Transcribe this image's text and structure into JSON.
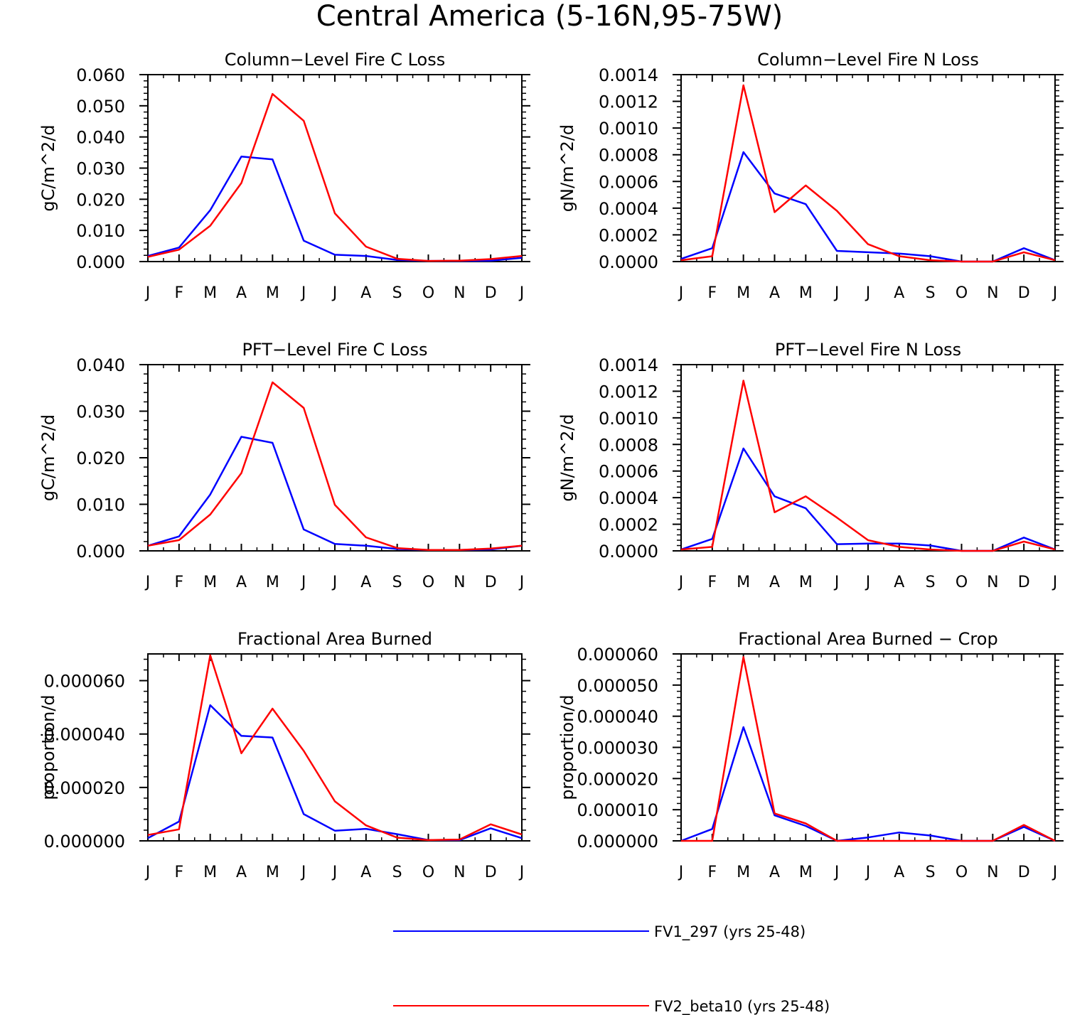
{
  "figure_title": "Central America (5-16N,95-75W)",
  "colors": {
    "series1": "#0000ff",
    "series2": "#ff0000",
    "axis": "#000000"
  },
  "legend": [
    {
      "label": "FV1_297 (yrs 25-48)",
      "color": "#0000ff"
    },
    {
      "label": "FV2_beta10 (yrs 25-48)",
      "color": "#ff0000"
    }
  ],
  "chart_data": [
    {
      "type": "line",
      "title": "Column-Level Fire C Loss",
      "ylabel": "gC/m^2/d",
      "categories": [
        "J",
        "F",
        "M",
        "A",
        "M",
        "J",
        "J",
        "A",
        "S",
        "O",
        "N",
        "D",
        "J"
      ],
      "ylim": [
        0,
        0.06
      ],
      "yticks": [
        0,
        0.01,
        0.02,
        0.03,
        0.04,
        0.05,
        0.06
      ],
      "yticklabels": [
        "0.000",
        "0.010",
        "0.020",
        "0.030",
        "0.040",
        "0.050",
        "0.060"
      ],
      "minor_per_major": 4,
      "series": [
        {
          "name": "FV1_297 (yrs 25-48)",
          "color": "#0000ff",
          "values": [
            0.0018,
            0.0045,
            0.0165,
            0.0337,
            0.0328,
            0.0067,
            0.0022,
            0.0018,
            0.0005,
            0.0002,
            0.0002,
            0.0003,
            0.0012
          ]
        },
        {
          "name": "FV2_beta10 (yrs 25-48)",
          "color": "#ff0000",
          "values": [
            0.0015,
            0.0038,
            0.0115,
            0.0252,
            0.0538,
            0.0452,
            0.0155,
            0.0048,
            0.0009,
            0.0002,
            0.0003,
            0.0008,
            0.0018
          ]
        }
      ]
    },
    {
      "type": "line",
      "title": "Column-Level Fire N Loss",
      "ylabel": "gN/m^2/d",
      "categories": [
        "J",
        "F",
        "M",
        "A",
        "M",
        "J",
        "J",
        "A",
        "S",
        "O",
        "N",
        "D",
        "J"
      ],
      "ylim": [
        0,
        0.0014
      ],
      "yticks": [
        0,
        0.0002,
        0.0004,
        0.0006,
        0.0008,
        0.001,
        0.0012,
        0.0014
      ],
      "yticklabels": [
        "0.0000",
        "0.0002",
        "0.0004",
        "0.0006",
        "0.0008",
        "0.0010",
        "0.0012",
        "0.0014"
      ],
      "minor_per_major": 4,
      "series": [
        {
          "name": "FV1_297 (yrs 25-48)",
          "color": "#0000ff",
          "values": [
            2e-05,
            0.0001,
            0.00082,
            0.00051,
            0.00043,
            8e-05,
            7e-05,
            6e-05,
            4e-05,
            0.0,
            0.0,
            0.0001,
            1e-05
          ]
        },
        {
          "name": "FV2_beta10 (yrs 25-48)",
          "color": "#ff0000",
          "values": [
            1e-05,
            4e-05,
            0.00132,
            0.00037,
            0.00057,
            0.00038,
            0.00013,
            4e-05,
            1e-05,
            0.0,
            0.0,
            7e-05,
            1e-05
          ]
        }
      ]
    },
    {
      "type": "line",
      "title": "PFT-Level Fire C Loss",
      "ylabel": "gC/m^2/d",
      "categories": [
        "J",
        "F",
        "M",
        "A",
        "M",
        "J",
        "J",
        "A",
        "S",
        "O",
        "N",
        "D",
        "J"
      ],
      "ylim": [
        0,
        0.04
      ],
      "yticks": [
        0,
        0.01,
        0.02,
        0.03,
        0.04
      ],
      "yticklabels": [
        "0.000",
        "0.010",
        "0.020",
        "0.030",
        "0.040"
      ],
      "minor_per_major": 4,
      "series": [
        {
          "name": "FV1_297 (yrs 25-48)",
          "color": "#0000ff",
          "values": [
            0.0011,
            0.0031,
            0.0121,
            0.0245,
            0.0232,
            0.0046,
            0.0015,
            0.0011,
            0.0004,
            0.0002,
            0.0002,
            0.0003,
            0.0011
          ]
        },
        {
          "name": "FV2_beta10 (yrs 25-48)",
          "color": "#ff0000",
          "values": [
            0.0011,
            0.0023,
            0.0078,
            0.0167,
            0.0362,
            0.0307,
            0.0099,
            0.0029,
            0.0006,
            0.0002,
            0.0002,
            0.0005,
            0.0011
          ]
        }
      ]
    },
    {
      "type": "line",
      "title": "PFT-Level Fire N Loss",
      "ylabel": "gN/m^2/d",
      "categories": [
        "J",
        "F",
        "M",
        "A",
        "M",
        "J",
        "J",
        "A",
        "S",
        "O",
        "N",
        "D",
        "J"
      ],
      "ylim": [
        0,
        0.0014
      ],
      "yticks": [
        0,
        0.0002,
        0.0004,
        0.0006,
        0.0008,
        0.001,
        0.0012,
        0.0014
      ],
      "yticklabels": [
        "0.0000",
        "0.0002",
        "0.0004",
        "0.0006",
        "0.0008",
        "0.0010",
        "0.0012",
        "0.0014"
      ],
      "minor_per_major": 4,
      "series": [
        {
          "name": "FV1_297 (yrs 25-48)",
          "color": "#0000ff",
          "values": [
            1e-05,
            9e-05,
            0.00077,
            0.00041,
            0.00032,
            5e-05,
            5.5e-05,
            5.5e-05,
            4e-05,
            0.0,
            0.0,
            0.0001,
            1e-05
          ]
        },
        {
          "name": "FV2_beta10 (yrs 25-48)",
          "color": "#ff0000",
          "values": [
            1e-05,
            3e-05,
            0.00128,
            0.00029,
            0.00041,
            0.00025,
            8e-05,
            3e-05,
            1e-05,
            0.0,
            0.0,
            7e-05,
            1e-05
          ]
        }
      ]
    },
    {
      "type": "line",
      "title": "Fractional Area Burned",
      "ylabel": "proportion/d",
      "categories": [
        "J",
        "F",
        "M",
        "A",
        "M",
        "J",
        "J",
        "A",
        "S",
        "O",
        "N",
        "D",
        "J"
      ],
      "ylim": [
        0,
        7e-05
      ],
      "yticks": [
        0,
        2e-05,
        4e-05,
        6e-05
      ],
      "yticklabels": [
        "0.000000",
        "0.000020",
        "0.000040",
        "0.000060"
      ],
      "minor_per_major": 4,
      "series": [
        {
          "name": "FV1_297 (yrs 25-48)",
          "color": "#0000ff",
          "values": [
            1e-06,
            7.2e-06,
            5.08e-05,
            3.93e-05,
            3.87e-05,
            1e-05,
            3.8e-06,
            4.5e-06,
            2.5e-06,
            3e-07,
            3e-07,
            4.7e-06,
            1e-06
          ]
        },
        {
          "name": "FV2_beta10 (yrs 25-48)",
          "color": "#ff0000",
          "values": [
            2.2e-06,
            4.3e-06,
            6.95e-05,
            3.28e-05,
            4.95e-05,
            3.37e-05,
            1.48e-05,
            5.8e-06,
            1.2e-06,
            3e-07,
            5e-07,
            6.2e-06,
            2.4e-06
          ]
        }
      ]
    },
    {
      "type": "line",
      "title": "Fractional Area Burned - Crop",
      "ylabel": "proportion/d",
      "categories": [
        "J",
        "F",
        "M",
        "A",
        "M",
        "J",
        "J",
        "A",
        "S",
        "O",
        "N",
        "D",
        "J"
      ],
      "ylim": [
        0,
        6e-05
      ],
      "yticks": [
        0,
        1e-05,
        2e-05,
        3e-05,
        4e-05,
        5e-05,
        6e-05
      ],
      "yticklabels": [
        "0.000000",
        "0.000010",
        "0.000020",
        "0.000030",
        "0.000040",
        "0.000050",
        "0.000060"
      ],
      "minor_per_major": 4,
      "series": [
        {
          "name": "FV1_297 (yrs 25-48)",
          "color": "#0000ff",
          "values": [
            0.0,
            3.8e-06,
            3.65e-05,
            8.2e-06,
            4.8e-06,
            0.0,
            1.1e-06,
            2.7e-06,
            1.7e-06,
            0.0,
            0.0,
            4.5e-06,
            0.0
          ]
        },
        {
          "name": "FV2_beta10 (yrs 25-48)",
          "color": "#ff0000",
          "values": [
            0.0,
            0.0,
            5.9e-05,
            8.8e-06,
            5.6e-06,
            0.0,
            0.0,
            0.0,
            0.0,
            0.0,
            0.0,
            5.1e-06,
            0.0
          ]
        }
      ]
    }
  ]
}
